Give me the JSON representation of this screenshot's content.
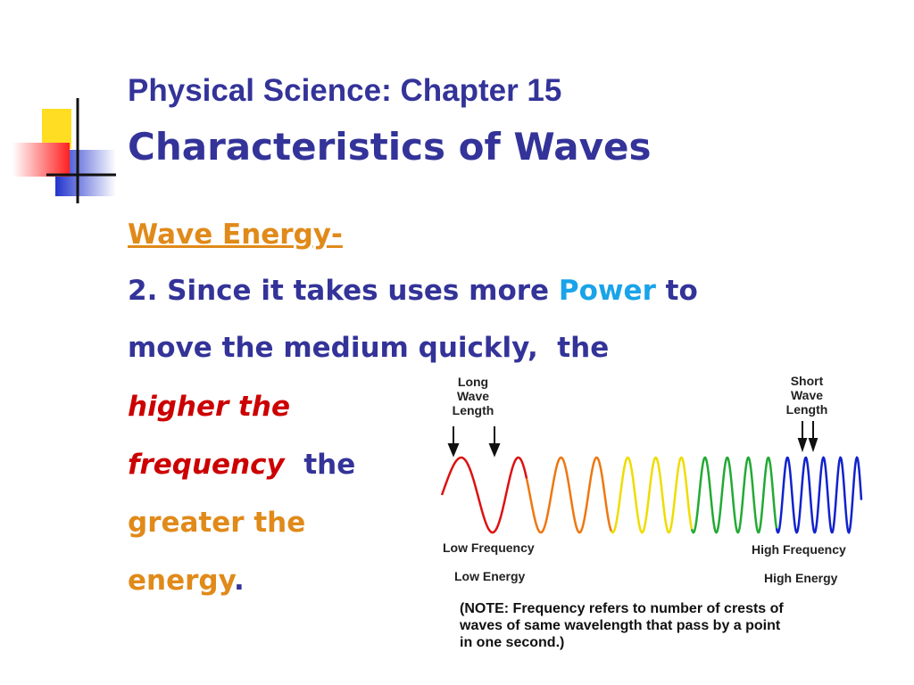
{
  "title": {
    "line1": "Physical Science: Chapter 15",
    "line2": "Characteristics of Waves"
  },
  "body": {
    "heading": "Wave Energy-",
    "lines": [
      [
        "2. Since it takes uses more",
        "Power",
        "to"
      ],
      [
        "move the medium quickly,  the"
      ],
      [
        "higher the"
      ],
      [
        "frequency",
        "the"
      ],
      [
        "greater the"
      ],
      [
        "energy",
        "."
      ]
    ]
  },
  "figure": {
    "long_label": [
      "Long",
      "Wave",
      "Length"
    ],
    "short_label": [
      "Short",
      "Wave",
      "Length"
    ],
    "low_frequency": "Low Frequency",
    "low_energy": "Low Energy",
    "high_frequency": "High Frequency",
    "high_energy": "High Energy",
    "note": [
      "(NOTE: Frequency refers to number of crests of",
      "waves of same wavelength that pass by a point",
      "in one second.)"
    ]
  }
}
